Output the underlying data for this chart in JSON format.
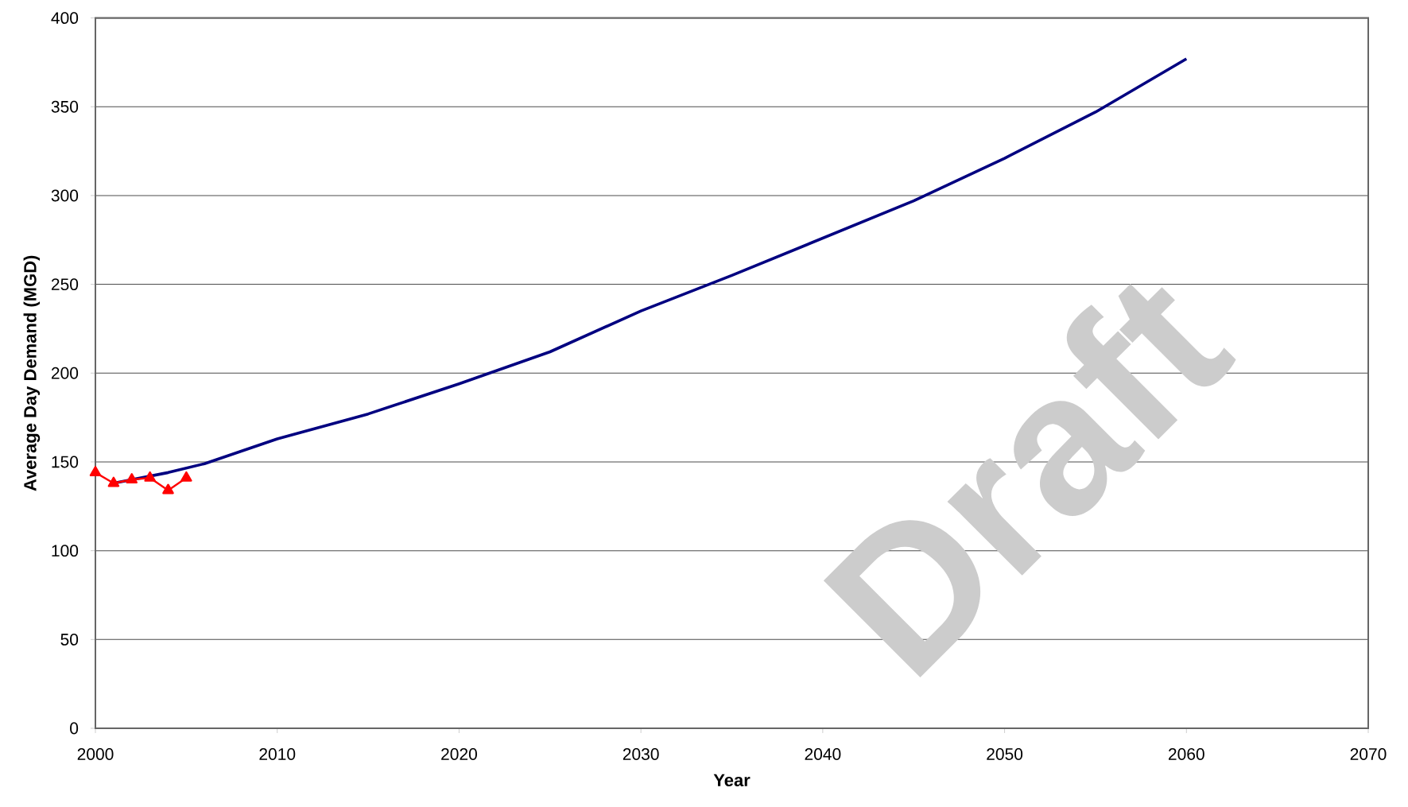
{
  "chart_data": {
    "type": "line",
    "xlabel": "Year",
    "ylabel": "Average Day Demand (MGD)",
    "xlim": [
      2000,
      2070
    ],
    "xticks": [
      2000,
      2010,
      2020,
      2030,
      2040,
      2050,
      2060,
      2070
    ],
    "ylim": [
      0,
      400
    ],
    "yticks": [
      0,
      50,
      100,
      150,
      200,
      250,
      300,
      350,
      400
    ],
    "grid": "y",
    "annotations": [
      "Draft"
    ],
    "series": [
      {
        "color": "#000080",
        "marker": "none",
        "x": [
          2001,
          2004,
          2006,
          2010,
          2015,
          2020,
          2025,
          2030,
          2035,
          2040,
          2045,
          2050,
          2055,
          2060
        ],
        "values": [
          138,
          144,
          149,
          163,
          177,
          194,
          212,
          235,
          255,
          276,
          297,
          321,
          347,
          377
        ]
      },
      {
        "color": "#ff0000",
        "marker": "triangle",
        "x": [
          2000,
          2001,
          2002,
          2003,
          2004,
          2005
        ],
        "values": [
          144,
          138,
          140,
          141,
          134,
          141
        ]
      }
    ]
  }
}
